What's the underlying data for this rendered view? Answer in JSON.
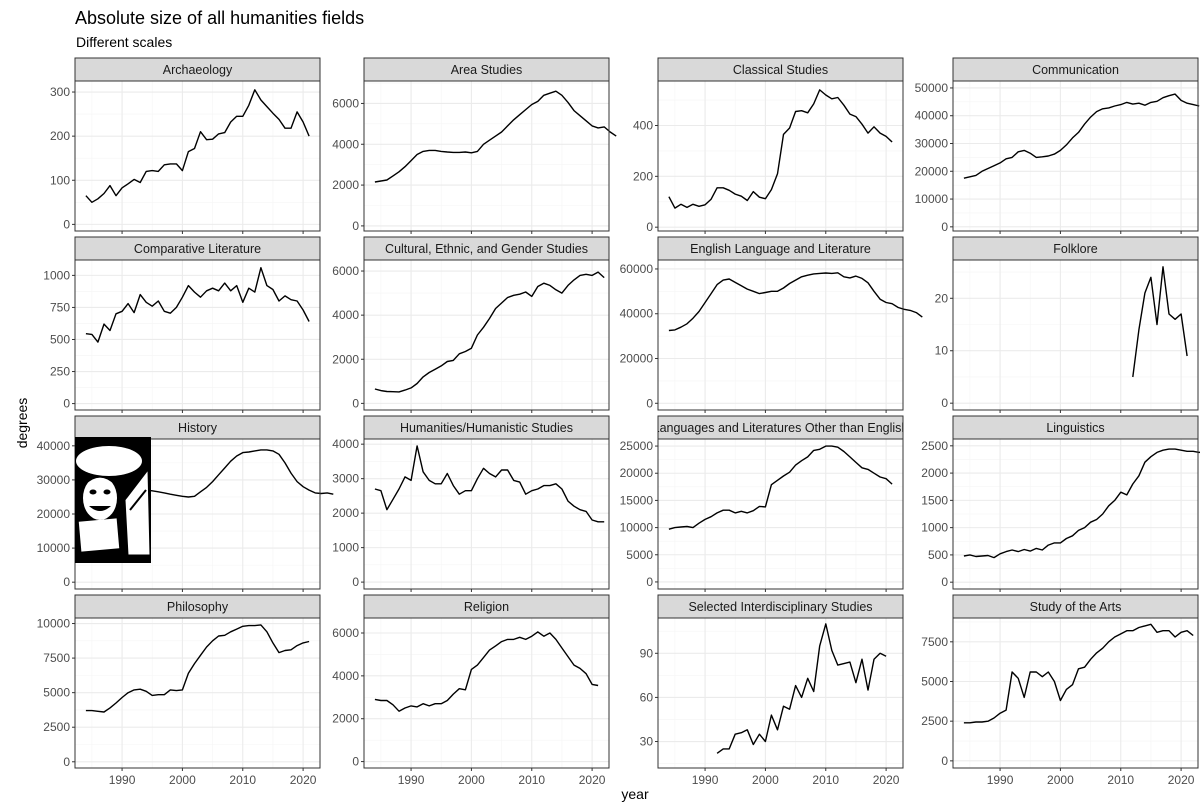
{
  "chart_data": {
    "type": "line",
    "title": "Absolute size of all humanities fields",
    "subtitle": "Different scales",
    "xlabel": "year",
    "ylabel": "degrees",
    "xlim": [
      1982.2,
      2022.8
    ],
    "x_ticks": [
      1990,
      2000,
      2010,
      2020
    ],
    "grid": true,
    "facets": [
      {
        "name": "Archaeology",
        "ylim": [
          -15,
          325
        ],
        "y_ticks": [
          0,
          100,
          200,
          300
        ],
        "x_start": 1984,
        "values": [
          65,
          50,
          58,
          70,
          88,
          65,
          83,
          92,
          102,
          95,
          120,
          122,
          120,
          135,
          137,
          137,
          122,
          165,
          172,
          210,
          192,
          193,
          205,
          208,
          232,
          245,
          245,
          270,
          305,
          282,
          267,
          252,
          238,
          218,
          218,
          255,
          232,
          200
        ]
      },
      {
        "name": "Area Studies",
        "ylim": [
          -250,
          7100
        ],
        "y_ticks": [
          0,
          2000,
          4000,
          6000
        ],
        "x_start": 1984,
        "values": [
          2150,
          2200,
          2250,
          2450,
          2650,
          2900,
          3200,
          3500,
          3650,
          3700,
          3700,
          3650,
          3620,
          3600,
          3600,
          3620,
          3580,
          3650,
          4000,
          4200,
          4400,
          4600,
          4900,
          5200,
          5450,
          5700,
          5950,
          6100,
          6400,
          6500,
          6600,
          6400,
          6050,
          5650,
          5400,
          5150,
          4900,
          4800,
          4850,
          4600,
          4400
        ]
      },
      {
        "name": "Classical Studies",
        "ylim": [
          -15,
          575
        ],
        "y_ticks": [
          0,
          200,
          400
        ],
        "x_start": 1984,
        "values": [
          120,
          75,
          90,
          78,
          90,
          82,
          88,
          110,
          155,
          155,
          145,
          130,
          122,
          105,
          140,
          118,
          112,
          148,
          210,
          365,
          390,
          455,
          458,
          450,
          485,
          540,
          520,
          505,
          510,
          480,
          445,
          435,
          405,
          370,
          395,
          370,
          357,
          335
        ]
      },
      {
        "name": "Communication",
        "ylim": [
          -1500,
          52500
        ],
        "y_ticks": [
          0,
          10000,
          20000,
          30000,
          40000,
          50000
        ],
        "x_start": 1984,
        "values": [
          17500,
          18000,
          18500,
          20000,
          21000,
          22000,
          23000,
          24500,
          25000,
          27000,
          27500,
          26500,
          25000,
          25200,
          25500,
          26200,
          27500,
          29500,
          32000,
          34000,
          37000,
          39500,
          41500,
          42500,
          42800,
          43500,
          44000,
          44800,
          44200,
          44500,
          43800,
          44800,
          45200,
          46500,
          47200,
          47800,
          45500,
          44500,
          44000,
          43500
        ]
      },
      {
        "name": "Comparative Literature",
        "ylim": [
          -50,
          1120
        ],
        "y_ticks": [
          0,
          250,
          500,
          750,
          1000
        ],
        "x_start": 1984,
        "values": [
          545,
          540,
          480,
          620,
          570,
          700,
          720,
          780,
          710,
          850,
          790,
          760,
          800,
          720,
          705,
          750,
          830,
          920,
          870,
          830,
          880,
          900,
          880,
          940,
          880,
          920,
          790,
          900,
          870,
          1060,
          920,
          890,
          800,
          840,
          810,
          800,
          730,
          640
        ]
      },
      {
        "name": "Cultural, Ethnic, and Gender Studies",
        "ylim": [
          -300,
          6500
        ],
        "y_ticks": [
          0,
          2000,
          4000,
          6000
        ],
        "x_start": 1984,
        "values": [
          650,
          580,
          540,
          530,
          520,
          600,
          700,
          900,
          1200,
          1400,
          1550,
          1700,
          1900,
          1950,
          2250,
          2350,
          2500,
          3100,
          3450,
          3850,
          4300,
          4550,
          4800,
          4900,
          4950,
          5050,
          4850,
          5300,
          5450,
          5350,
          5150,
          5000,
          5350,
          5600,
          5800,
          5850,
          5800,
          5950,
          5700
        ]
      },
      {
        "name": "English Language and Literature",
        "ylim": [
          -3000,
          64000
        ],
        "y_ticks": [
          0,
          20000,
          40000,
          60000
        ],
        "x_start": 1984,
        "values": [
          32500,
          32800,
          34000,
          35500,
          38000,
          41000,
          45000,
          49000,
          53000,
          55000,
          55500,
          54000,
          52500,
          51000,
          50000,
          49000,
          49500,
          50000,
          50000,
          51500,
          53500,
          55000,
          56500,
          57200,
          57800,
          58000,
          58200,
          58000,
          58300,
          56500,
          56000,
          56800,
          55800,
          53800,
          50000,
          46500,
          45000,
          44500,
          42800,
          42000,
          41500,
          40500,
          38500
        ]
      },
      {
        "name": "Folklore",
        "ylim": [
          -1.3,
          27.3
        ],
        "y_ticks": [
          0,
          10,
          20
        ],
        "x_start": 2012,
        "values": [
          5,
          14,
          21,
          24,
          15,
          26,
          17,
          16,
          17,
          9
        ]
      },
      {
        "name": "History",
        "ylim": [
          -2000,
          42000
        ],
        "y_ticks": [
          0,
          10000,
          20000,
          30000,
          40000
        ],
        "x_start": 1984,
        "values": [
          27000,
          26800,
          26500,
          26200,
          26000,
          26500,
          27200,
          27500,
          27800,
          27500,
          27000,
          26800,
          26500,
          26200,
          25800,
          25500,
          25200,
          25000,
          25200,
          26500,
          27800,
          29500,
          31500,
          33500,
          35500,
          37000,
          38000,
          38200,
          38500,
          38800,
          38800,
          38500,
          37500,
          35000,
          32000,
          29500,
          28000,
          27000,
          26200,
          26000,
          26200,
          25800
        ]
      },
      {
        "name": "Humanities/Humanistic Studies",
        "ylim": [
          -200,
          4150
        ],
        "y_ticks": [
          0,
          1000,
          2000,
          3000,
          4000
        ],
        "x_start": 1984,
        "values": [
          2700,
          2650,
          2100,
          2400,
          2700,
          3050,
          2950,
          3950,
          3200,
          2950,
          2850,
          2850,
          3150,
          2800,
          2550,
          2650,
          2650,
          3000,
          3300,
          3150,
          3050,
          3250,
          3250,
          2950,
          2900,
          2550,
          2650,
          2700,
          2800,
          2800,
          2850,
          2700,
          2350,
          2200,
          2100,
          2050,
          1800,
          1750,
          1750
        ]
      },
      {
        "name": "Languages and Literatures Other than English",
        "ylim": [
          -1300,
          26300
        ],
        "y_ticks": [
          0,
          5000,
          10000,
          15000,
          20000,
          25000
        ],
        "x_start": 1984,
        "values": [
          9700,
          10000,
          10100,
          10200,
          10000,
          10800,
          11500,
          12000,
          12700,
          13200,
          13200,
          12700,
          13000,
          12700,
          13100,
          13900,
          13800,
          17900,
          18700,
          19500,
          20200,
          21500,
          22300,
          23000,
          24200,
          24400,
          25000,
          25000,
          24800,
          24000,
          23000,
          22000,
          21000,
          20700,
          20000,
          19300,
          19000,
          18000
        ]
      },
      {
        "name": "Linguistics",
        "ylim": [
          -125,
          2625
        ],
        "y_ticks": [
          0,
          500,
          1000,
          1500,
          2000,
          2500
        ],
        "x_start": 1984,
        "values": [
          480,
          500,
          470,
          480,
          490,
          450,
          520,
          560,
          590,
          560,
          600,
          570,
          620,
          590,
          680,
          720,
          720,
          800,
          850,
          950,
          1000,
          1100,
          1150,
          1250,
          1400,
          1500,
          1650,
          1600,
          1800,
          1950,
          2200,
          2300,
          2380,
          2420,
          2440,
          2440,
          2420,
          2400,
          2400,
          2380,
          2400
        ]
      },
      {
        "name": "Philosophy",
        "ylim": [
          -450,
          10400
        ],
        "y_ticks": [
          0,
          2500,
          5000,
          7500,
          10000
        ],
        "x_start": 1984,
        "values": [
          3700,
          3700,
          3650,
          3600,
          3900,
          4250,
          4650,
          5000,
          5200,
          5250,
          5100,
          4800,
          4850,
          4850,
          5200,
          5150,
          5200,
          6400,
          7100,
          7700,
          8300,
          8750,
          9100,
          9150,
          9400,
          9600,
          9800,
          9850,
          9850,
          9900,
          9400,
          8600,
          7900,
          8050,
          8100,
          8400,
          8600,
          8700
        ]
      },
      {
        "name": "Religion",
        "ylim": [
          -300,
          6700
        ],
        "y_ticks": [
          0,
          2000,
          4000,
          6000
        ],
        "x_start": 1984,
        "values": [
          2900,
          2850,
          2850,
          2650,
          2350,
          2500,
          2600,
          2550,
          2700,
          2600,
          2700,
          2700,
          2850,
          3150,
          3400,
          3350,
          4300,
          4500,
          4850,
          5200,
          5400,
          5600,
          5700,
          5700,
          5800,
          5700,
          5850,
          6050,
          5850,
          6000,
          5700,
          5300,
          4900,
          4500,
          4350,
          4100,
          3600,
          3550
        ]
      },
      {
        "name": "Selected Interdisciplinary Studies",
        "ylim": [
          12,
          114
        ],
        "y_ticks": [
          30,
          60,
          90
        ],
        "x_start": 1992,
        "values": [
          22,
          25,
          25,
          35,
          36,
          38,
          28,
          35,
          30,
          48,
          38,
          54,
          52,
          68,
          60,
          73,
          64,
          95,
          110,
          92,
          82,
          83,
          84,
          70,
          86,
          65,
          86,
          90,
          88
        ]
      },
      {
        "name": "Study of the Arts",
        "ylim": [
          -450,
          9000
        ],
        "y_ticks": [
          0,
          2500,
          5000,
          7500
        ],
        "x_start": 1984,
        "values": [
          2400,
          2400,
          2450,
          2450,
          2500,
          2700,
          3000,
          3200,
          5600,
          5200,
          4000,
          5600,
          5600,
          5300,
          5600,
          5000,
          3800,
          4500,
          4800,
          5800,
          5900,
          6400,
          6800,
          7100,
          7500,
          7800,
          8000,
          8200,
          8200,
          8400,
          8500,
          8600,
          8100,
          8200,
          8200,
          7800,
          8100,
          8200,
          7900
        ]
      }
    ]
  }
}
